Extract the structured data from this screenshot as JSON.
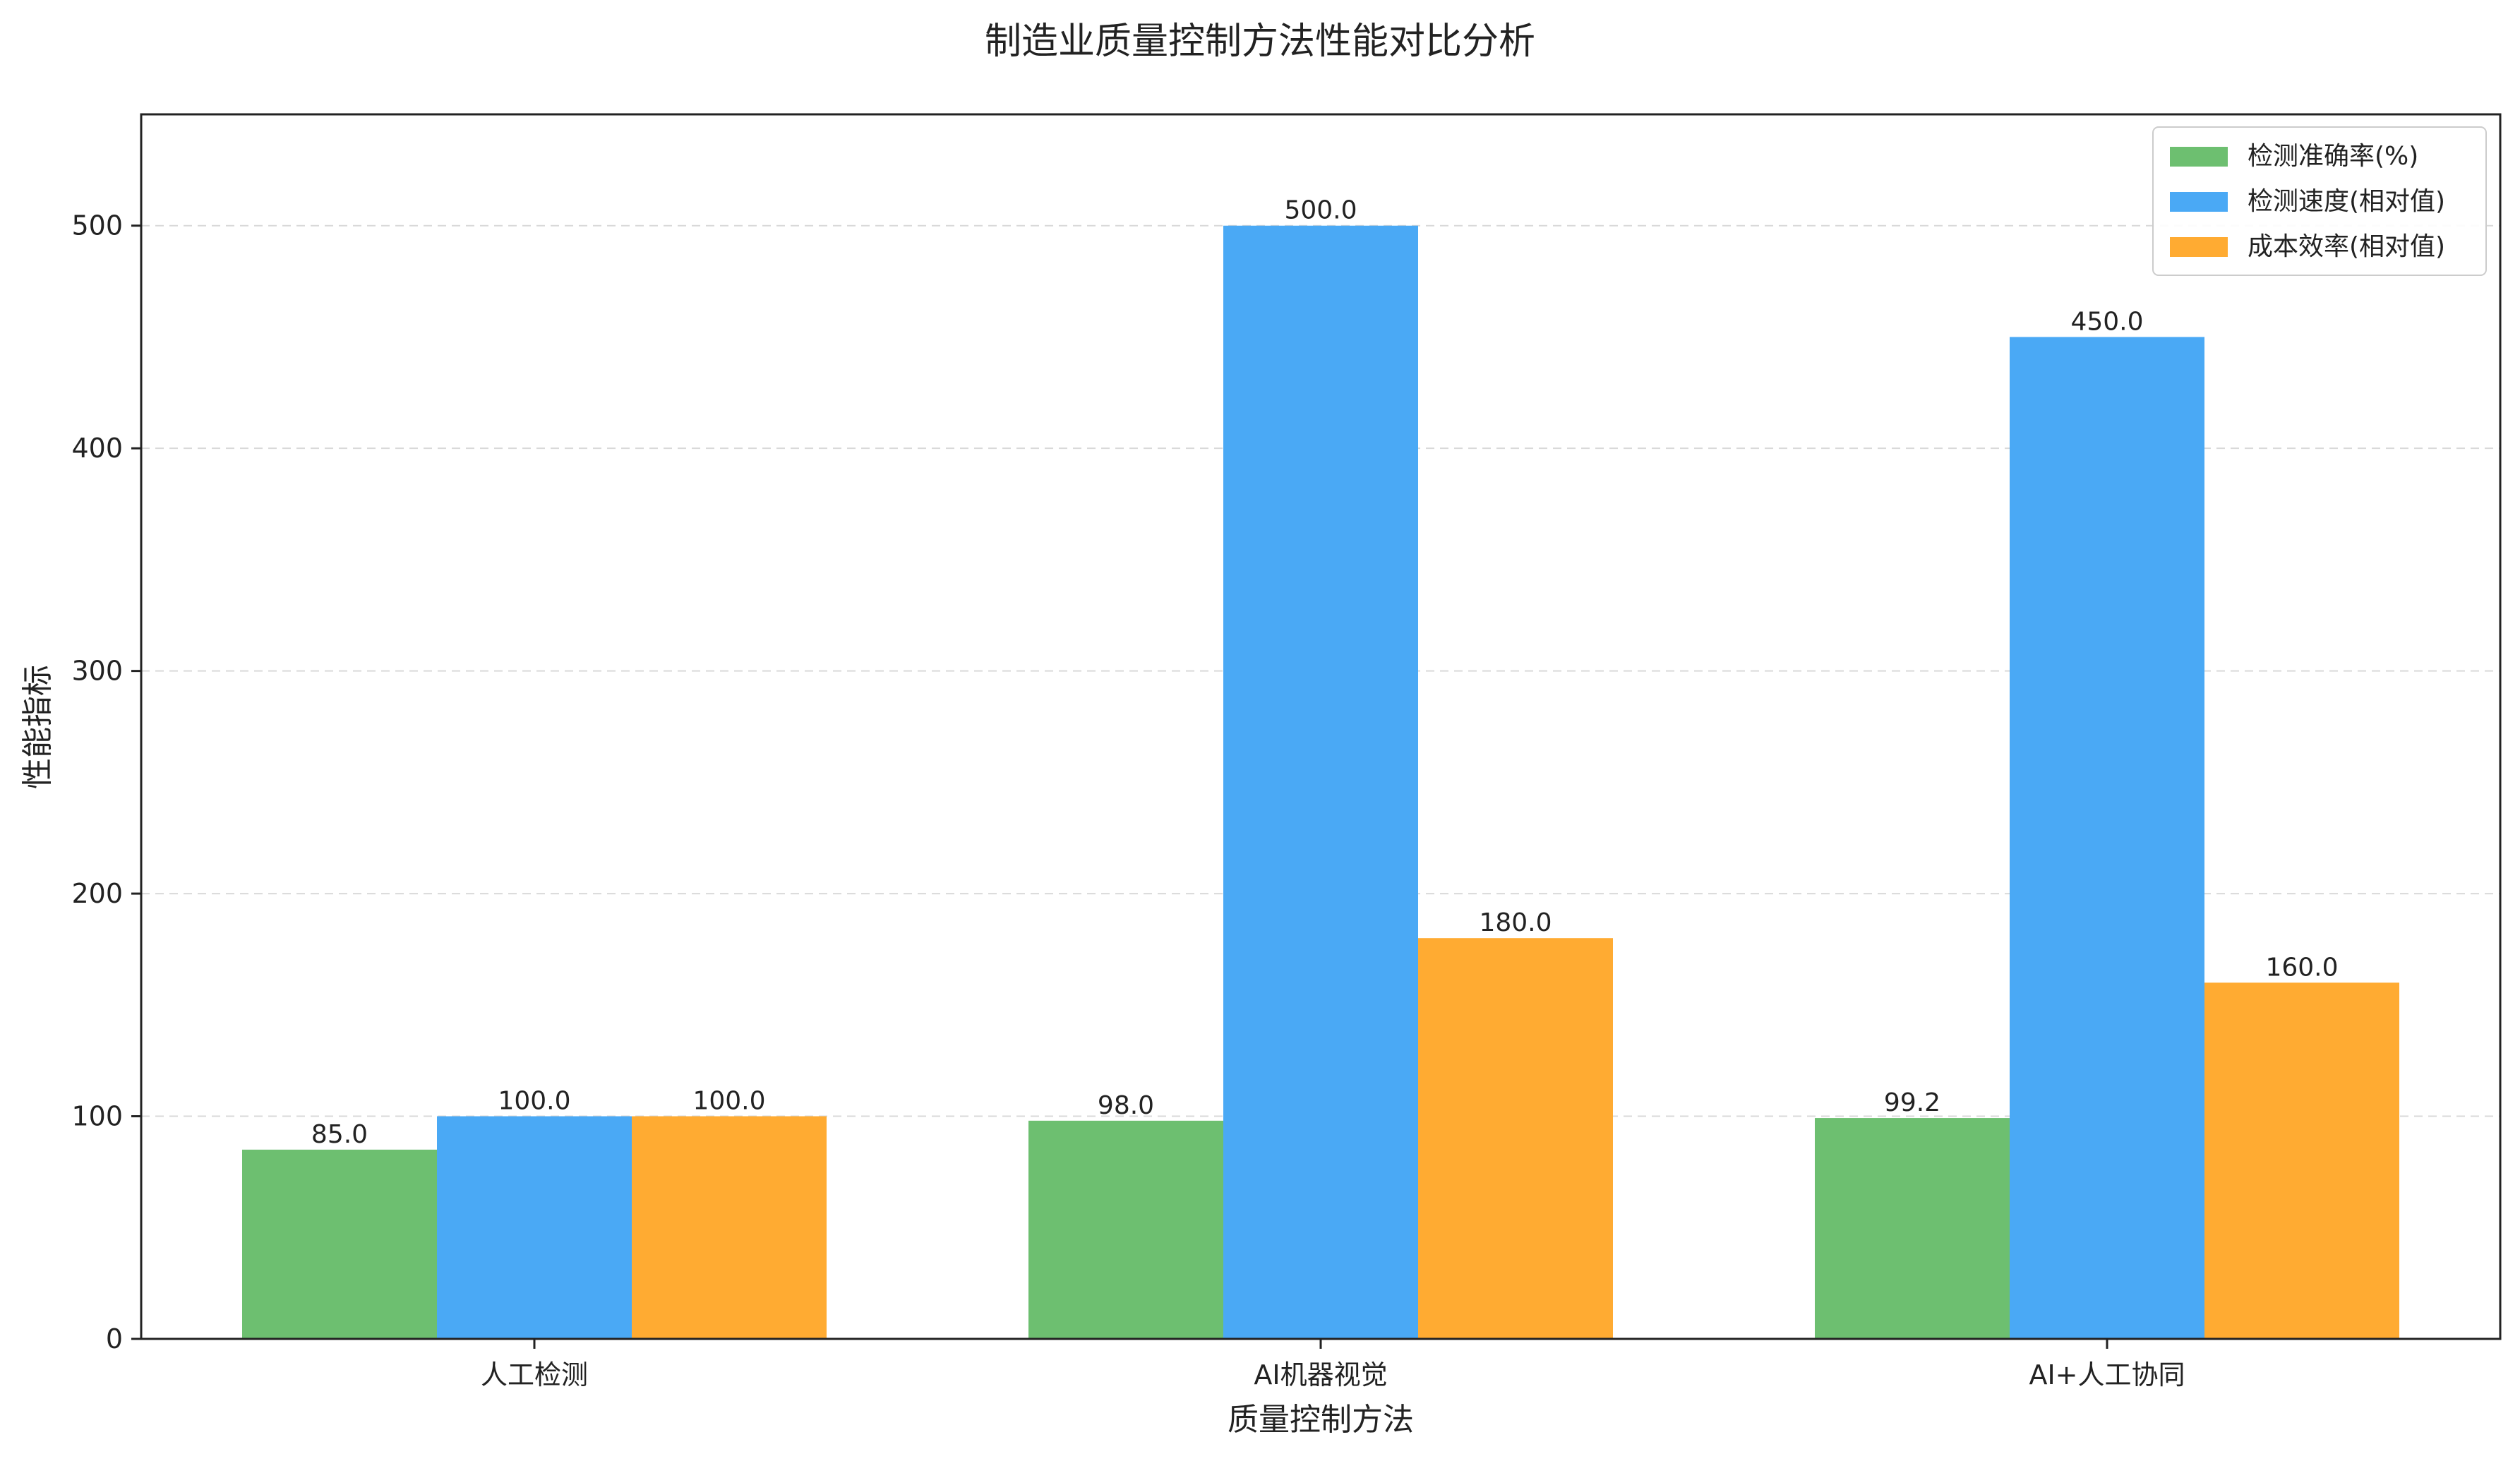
{
  "chart_data": {
    "type": "bar",
    "title": "制造业质量控制方法性能对比分析",
    "xlabel": "质量控制方法",
    "ylabel": "性能指标",
    "categories": [
      "人工检测",
      "AI机器视觉",
      "AI+人工协同"
    ],
    "series": [
      {
        "name": "检测准确率(%)",
        "values": [
          85.0,
          98.0,
          99.2
        ],
        "color": "#6dbf70"
      },
      {
        "name": "检测速度(相对值)",
        "values": [
          100.0,
          500.0,
          450.0
        ],
        "color": "#4aa9f5"
      },
      {
        "name": "成本效率(相对值)",
        "values": [
          100.0,
          180.0,
          160.0
        ],
        "color": "#ffab32"
      }
    ],
    "ylim": [
      0,
      550
    ],
    "yticks": [
      0,
      100,
      200,
      300,
      400,
      500
    ],
    "grid": "horizontal dashed",
    "legend": "top-right"
  }
}
